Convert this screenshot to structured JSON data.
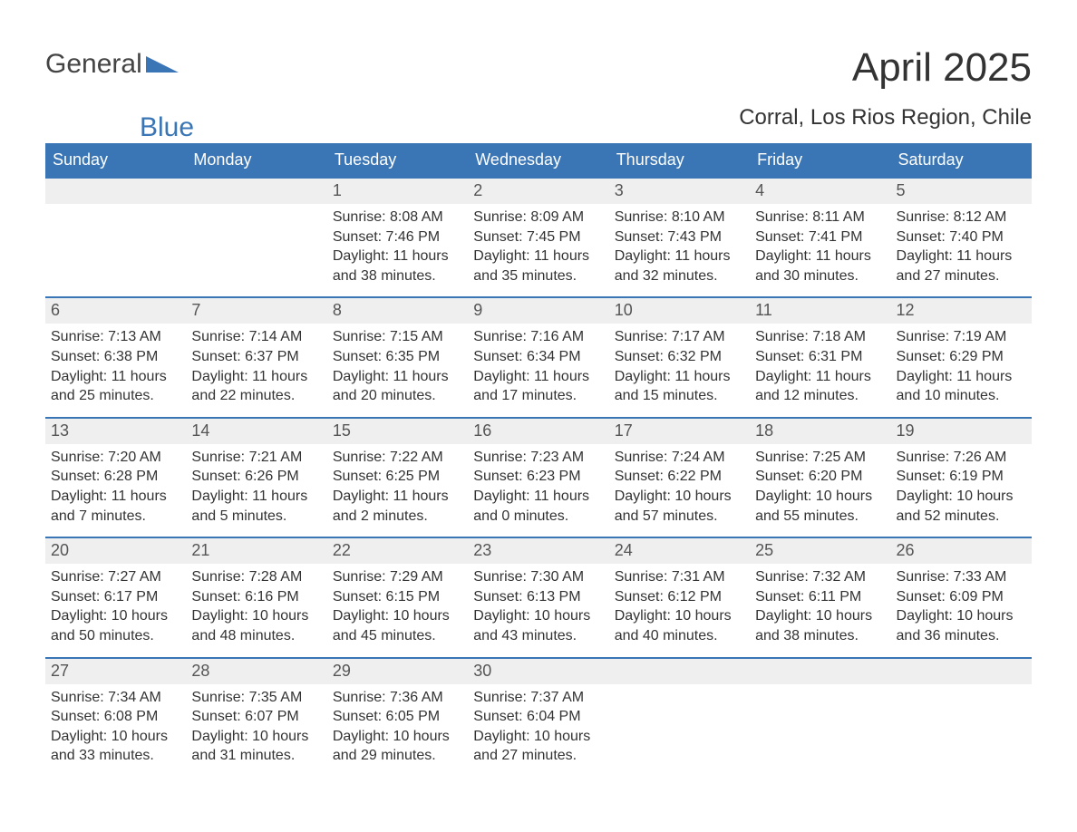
{
  "brand": {
    "part1": "General",
    "part2": "Blue"
  },
  "title": "April 2025",
  "location": "Corral, Los Rios Region, Chile",
  "colors": {
    "header_bg": "#3a76b5",
    "header_text": "#ffffff",
    "daybar_bg": "#efefef",
    "body_text": "#333333",
    "brand_blue": "#3a76b5",
    "brand_gray": "#444444"
  },
  "typography": {
    "title_fontsize": 44,
    "location_fontsize": 24,
    "weekday_fontsize": 18,
    "daynum_fontsize": 18,
    "detail_fontsize": 16
  },
  "weekdays": [
    "Sunday",
    "Monday",
    "Tuesday",
    "Wednesday",
    "Thursday",
    "Friday",
    "Saturday"
  ],
  "weeks": [
    [
      {
        "day": "",
        "sunrise": "",
        "sunset": "",
        "daylight1": "",
        "daylight2": ""
      },
      {
        "day": "",
        "sunrise": "",
        "sunset": "",
        "daylight1": "",
        "daylight2": ""
      },
      {
        "day": "1",
        "sunrise": "Sunrise: 8:08 AM",
        "sunset": "Sunset: 7:46 PM",
        "daylight1": "Daylight: 11 hours",
        "daylight2": "and 38 minutes."
      },
      {
        "day": "2",
        "sunrise": "Sunrise: 8:09 AM",
        "sunset": "Sunset: 7:45 PM",
        "daylight1": "Daylight: 11 hours",
        "daylight2": "and 35 minutes."
      },
      {
        "day": "3",
        "sunrise": "Sunrise: 8:10 AM",
        "sunset": "Sunset: 7:43 PM",
        "daylight1": "Daylight: 11 hours",
        "daylight2": "and 32 minutes."
      },
      {
        "day": "4",
        "sunrise": "Sunrise: 8:11 AM",
        "sunset": "Sunset: 7:41 PM",
        "daylight1": "Daylight: 11 hours",
        "daylight2": "and 30 minutes."
      },
      {
        "day": "5",
        "sunrise": "Sunrise: 8:12 AM",
        "sunset": "Sunset: 7:40 PM",
        "daylight1": "Daylight: 11 hours",
        "daylight2": "and 27 minutes."
      }
    ],
    [
      {
        "day": "6",
        "sunrise": "Sunrise: 7:13 AM",
        "sunset": "Sunset: 6:38 PM",
        "daylight1": "Daylight: 11 hours",
        "daylight2": "and 25 minutes."
      },
      {
        "day": "7",
        "sunrise": "Sunrise: 7:14 AM",
        "sunset": "Sunset: 6:37 PM",
        "daylight1": "Daylight: 11 hours",
        "daylight2": "and 22 minutes."
      },
      {
        "day": "8",
        "sunrise": "Sunrise: 7:15 AM",
        "sunset": "Sunset: 6:35 PM",
        "daylight1": "Daylight: 11 hours",
        "daylight2": "and 20 minutes."
      },
      {
        "day": "9",
        "sunrise": "Sunrise: 7:16 AM",
        "sunset": "Sunset: 6:34 PM",
        "daylight1": "Daylight: 11 hours",
        "daylight2": "and 17 minutes."
      },
      {
        "day": "10",
        "sunrise": "Sunrise: 7:17 AM",
        "sunset": "Sunset: 6:32 PM",
        "daylight1": "Daylight: 11 hours",
        "daylight2": "and 15 minutes."
      },
      {
        "day": "11",
        "sunrise": "Sunrise: 7:18 AM",
        "sunset": "Sunset: 6:31 PM",
        "daylight1": "Daylight: 11 hours",
        "daylight2": "and 12 minutes."
      },
      {
        "day": "12",
        "sunrise": "Sunrise: 7:19 AM",
        "sunset": "Sunset: 6:29 PM",
        "daylight1": "Daylight: 11 hours",
        "daylight2": "and 10 minutes."
      }
    ],
    [
      {
        "day": "13",
        "sunrise": "Sunrise: 7:20 AM",
        "sunset": "Sunset: 6:28 PM",
        "daylight1": "Daylight: 11 hours",
        "daylight2": "and 7 minutes."
      },
      {
        "day": "14",
        "sunrise": "Sunrise: 7:21 AM",
        "sunset": "Sunset: 6:26 PM",
        "daylight1": "Daylight: 11 hours",
        "daylight2": "and 5 minutes."
      },
      {
        "day": "15",
        "sunrise": "Sunrise: 7:22 AM",
        "sunset": "Sunset: 6:25 PM",
        "daylight1": "Daylight: 11 hours",
        "daylight2": "and 2 minutes."
      },
      {
        "day": "16",
        "sunrise": "Sunrise: 7:23 AM",
        "sunset": "Sunset: 6:23 PM",
        "daylight1": "Daylight: 11 hours",
        "daylight2": "and 0 minutes."
      },
      {
        "day": "17",
        "sunrise": "Sunrise: 7:24 AM",
        "sunset": "Sunset: 6:22 PM",
        "daylight1": "Daylight: 10 hours",
        "daylight2": "and 57 minutes."
      },
      {
        "day": "18",
        "sunrise": "Sunrise: 7:25 AM",
        "sunset": "Sunset: 6:20 PM",
        "daylight1": "Daylight: 10 hours",
        "daylight2": "and 55 minutes."
      },
      {
        "day": "19",
        "sunrise": "Sunrise: 7:26 AM",
        "sunset": "Sunset: 6:19 PM",
        "daylight1": "Daylight: 10 hours",
        "daylight2": "and 52 minutes."
      }
    ],
    [
      {
        "day": "20",
        "sunrise": "Sunrise: 7:27 AM",
        "sunset": "Sunset: 6:17 PM",
        "daylight1": "Daylight: 10 hours",
        "daylight2": "and 50 minutes."
      },
      {
        "day": "21",
        "sunrise": "Sunrise: 7:28 AM",
        "sunset": "Sunset: 6:16 PM",
        "daylight1": "Daylight: 10 hours",
        "daylight2": "and 48 minutes."
      },
      {
        "day": "22",
        "sunrise": "Sunrise: 7:29 AM",
        "sunset": "Sunset: 6:15 PM",
        "daylight1": "Daylight: 10 hours",
        "daylight2": "and 45 minutes."
      },
      {
        "day": "23",
        "sunrise": "Sunrise: 7:30 AM",
        "sunset": "Sunset: 6:13 PM",
        "daylight1": "Daylight: 10 hours",
        "daylight2": "and 43 minutes."
      },
      {
        "day": "24",
        "sunrise": "Sunrise: 7:31 AM",
        "sunset": "Sunset: 6:12 PM",
        "daylight1": "Daylight: 10 hours",
        "daylight2": "and 40 minutes."
      },
      {
        "day": "25",
        "sunrise": "Sunrise: 7:32 AM",
        "sunset": "Sunset: 6:11 PM",
        "daylight1": "Daylight: 10 hours",
        "daylight2": "and 38 minutes."
      },
      {
        "day": "26",
        "sunrise": "Sunrise: 7:33 AM",
        "sunset": "Sunset: 6:09 PM",
        "daylight1": "Daylight: 10 hours",
        "daylight2": "and 36 minutes."
      }
    ],
    [
      {
        "day": "27",
        "sunrise": "Sunrise: 7:34 AM",
        "sunset": "Sunset: 6:08 PM",
        "daylight1": "Daylight: 10 hours",
        "daylight2": "and 33 minutes."
      },
      {
        "day": "28",
        "sunrise": "Sunrise: 7:35 AM",
        "sunset": "Sunset: 6:07 PM",
        "daylight1": "Daylight: 10 hours",
        "daylight2": "and 31 minutes."
      },
      {
        "day": "29",
        "sunrise": "Sunrise: 7:36 AM",
        "sunset": "Sunset: 6:05 PM",
        "daylight1": "Daylight: 10 hours",
        "daylight2": "and 29 minutes."
      },
      {
        "day": "30",
        "sunrise": "Sunrise: 7:37 AM",
        "sunset": "Sunset: 6:04 PM",
        "daylight1": "Daylight: 10 hours",
        "daylight2": "and 27 minutes."
      },
      {
        "day": "",
        "sunrise": "",
        "sunset": "",
        "daylight1": "",
        "daylight2": ""
      },
      {
        "day": "",
        "sunrise": "",
        "sunset": "",
        "daylight1": "",
        "daylight2": ""
      },
      {
        "day": "",
        "sunrise": "",
        "sunset": "",
        "daylight1": "",
        "daylight2": ""
      }
    ]
  ]
}
